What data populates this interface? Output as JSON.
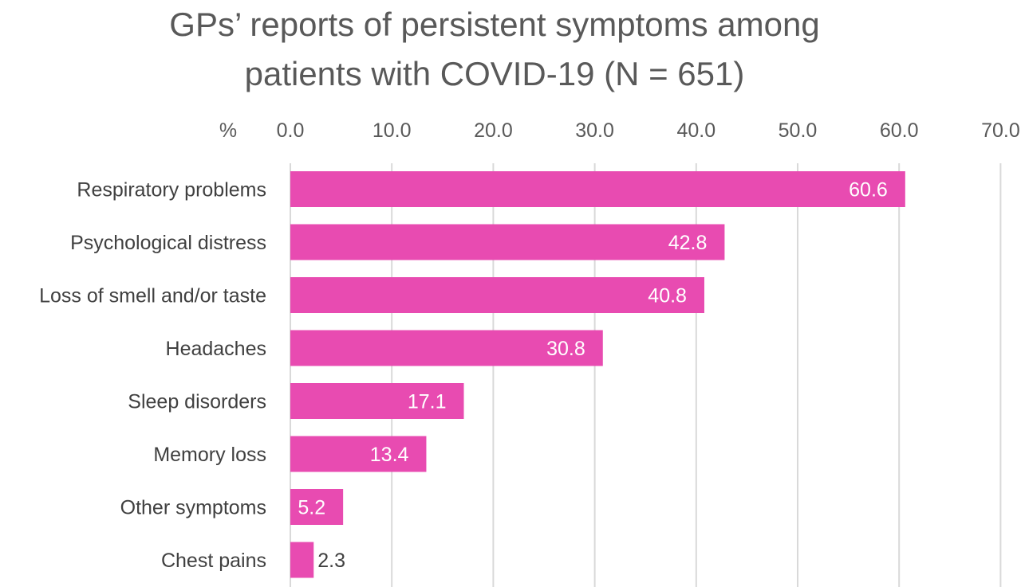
{
  "chart_data": {
    "type": "bar",
    "orientation": "horizontal",
    "title": "GPs’ reports of persistent symptoms among patients with COVID-19 (N = 651)",
    "title_lines": [
      "GPs’ reports of persistent symptoms among",
      "patients with COVID-19 (N = 651)"
    ],
    "xlabel": "%",
    "ylabel": "",
    "xlim": [
      0,
      70
    ],
    "x_ticks": [
      "0.0",
      "10.0",
      "20.0",
      "30.0",
      "40.0",
      "50.0",
      "60.0",
      "70.0"
    ],
    "axis_position": "top",
    "grid": true,
    "categories": [
      "Respiratory problems",
      "Psychological distress",
      "Loss of smell and/or taste",
      "Headaches",
      "Sleep disorders",
      "Memory loss",
      "Other symptoms",
      "Chest pains"
    ],
    "values": [
      60.6,
      42.8,
      40.8,
      30.8,
      17.1,
      13.4,
      5.2,
      2.3
    ],
    "value_labels": [
      "60.6",
      "42.8",
      "40.8",
      "30.8",
      "17.1",
      "13.4",
      "5.2",
      "2.3"
    ],
    "bar_color": "#E84BB1",
    "label_inside_color": "#ffffff",
    "label_outside_color": "#404040",
    "grid_color": "#D9D9D9"
  }
}
